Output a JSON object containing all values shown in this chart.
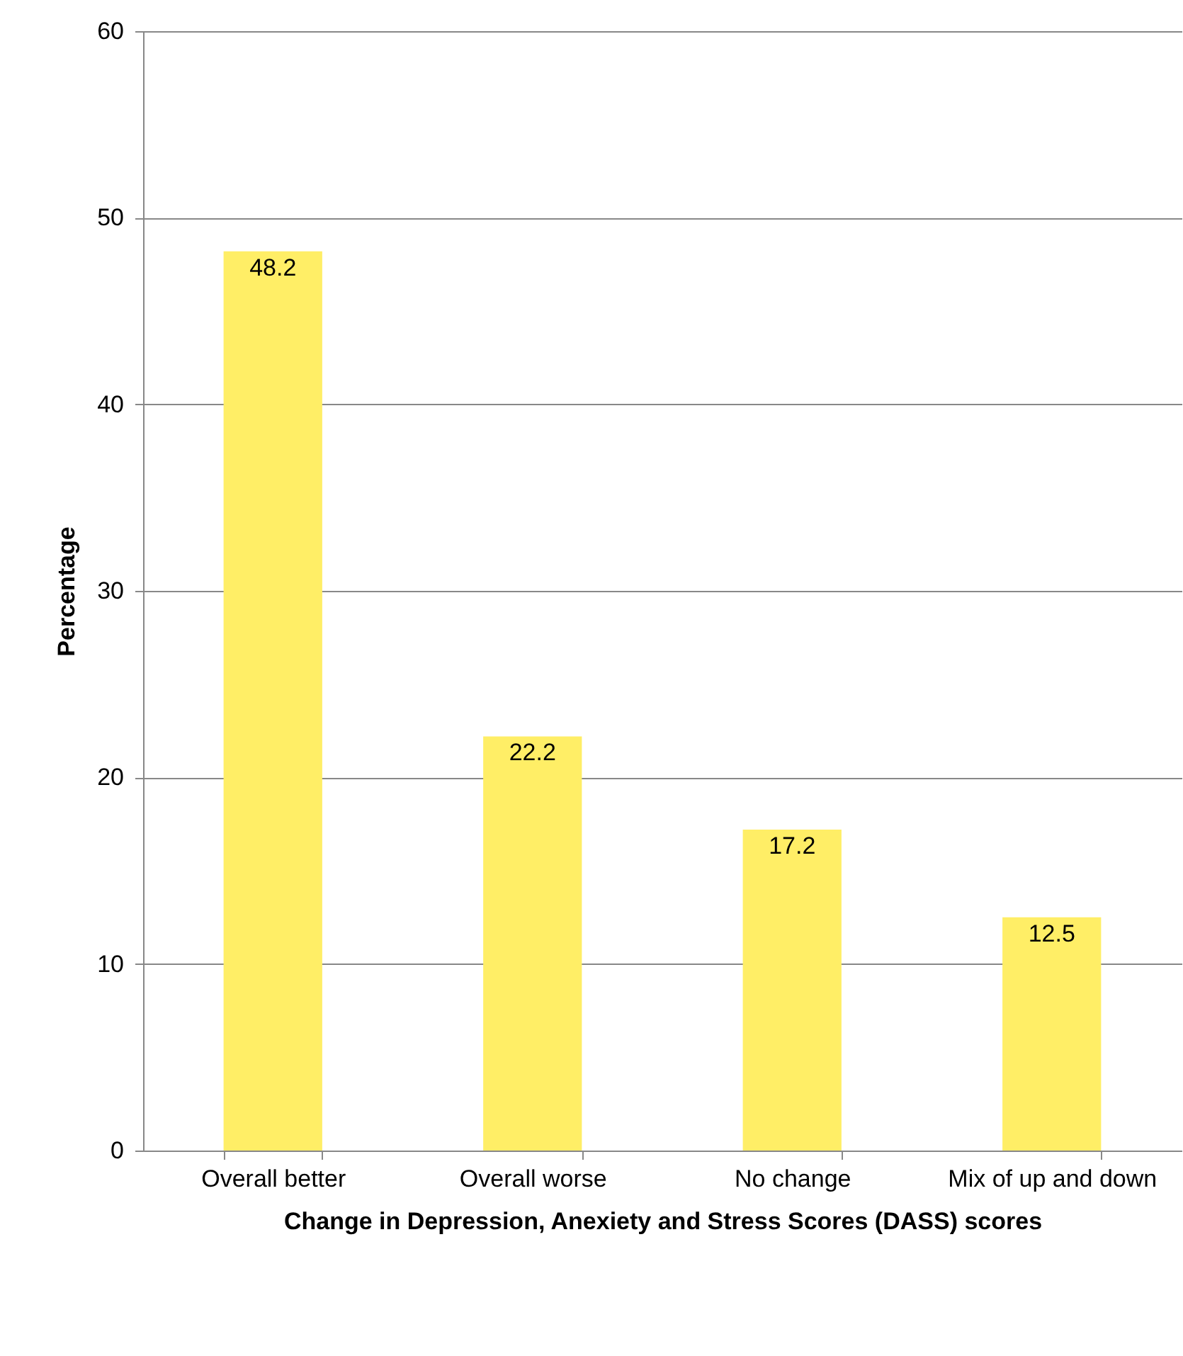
{
  "chart_data": {
    "type": "bar",
    "xlabel": "Change in Depression, Anexiety and Stress Scores (DASS) scores",
    "ylabel": "Percentage",
    "categories": [
      "Overall better",
      "Overall worse",
      "No change",
      "Mix of up and down"
    ],
    "values": [
      48.2,
      22.2,
      17.2,
      12.5
    ],
    "color": "#ffee66",
    "ylim": [
      0,
      60
    ],
    "yticks": [
      0,
      10,
      20,
      30,
      40,
      50,
      60
    ],
    "grid": "y",
    "data_labels": true
  }
}
